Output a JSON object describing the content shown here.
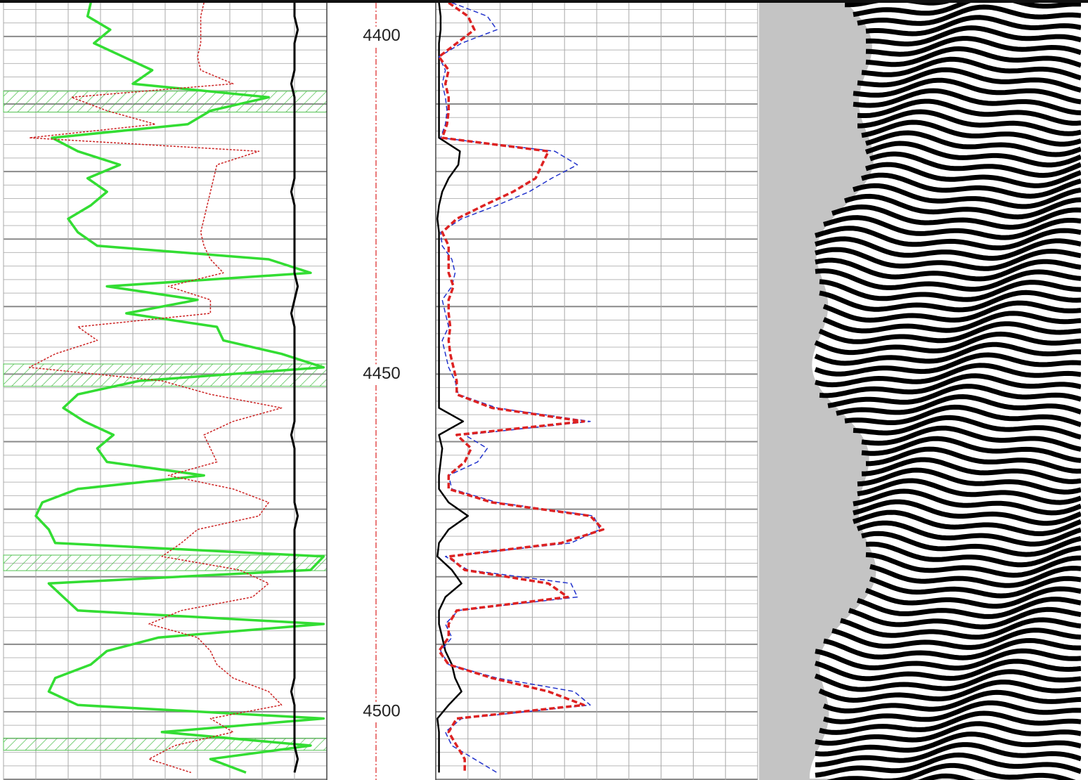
{
  "chart_data": {
    "type": "well_log",
    "ylim": [
      4394.6,
      4510.1
    ],
    "yticks": [
      4400,
      4450,
      4500
    ],
    "ygrid": [
      4396,
      4398,
      4400,
      4402,
      4404,
      4406,
      4408,
      4410,
      4412,
      4414,
      4416,
      4418,
      4420,
      4422,
      4424,
      4426,
      4428,
      4430,
      4432,
      4434,
      4436,
      4438,
      4440,
      4442,
      4444,
      4446,
      4448,
      4450,
      4452,
      4454,
      4456,
      4458,
      4460,
      4462,
      4464,
      4466,
      4468,
      4470,
      4472,
      4474,
      4476,
      4478,
      4480,
      4482,
      4484,
      4486,
      4488,
      4490,
      4492,
      4494,
      4496,
      4498,
      4500,
      4502,
      4504,
      4506,
      4508,
      4510
    ],
    "xlim": [
      0,
      10
    ],
    "xticks": [
      0,
      1,
      2,
      3,
      4,
      5,
      6,
      7,
      8,
      9,
      10
    ],
    "grid": true,
    "depth": [
      4395,
      4397,
      4399,
      4401,
      4403,
      4405,
      4407,
      4409,
      4411,
      4413,
      4415,
      4417,
      4419,
      4421,
      4423,
      4425,
      4427,
      4429,
      4431,
      4433,
      4435,
      4437,
      4439,
      4441,
      4443,
      4445,
      4447,
      4449,
      4451,
      4453,
      4455,
      4457,
      4459,
      4461,
      4463,
      4465,
      4467,
      4469,
      4471,
      4473,
      4475,
      4477,
      4479,
      4481,
      4483,
      4485,
      4487,
      4489,
      4491,
      4493,
      4495,
      4497,
      4499,
      4501,
      4503,
      4505,
      4507,
      4509
    ],
    "shaded_intervals": [
      [
        4408.1,
        4411.2
      ],
      [
        4448.5,
        4451.8
      ],
      [
        4476.8,
        4479.1
      ],
      [
        4503.9,
        4505.7
      ]
    ],
    "shade_color": "#52c152",
    "tracks": [
      {
        "series": [
          {
            "color": "#33dd33",
            "width": 3.5,
            "dash": "none",
            "values": [
              2.7,
              2.6,
              3.3,
              2.8,
              3.7,
              4.6,
              4.0,
              8.2,
              6.4,
              5.7,
              1.5,
              2.3,
              3.6,
              2.6,
              3.2,
              2.7,
              2.0,
              2.3,
              2.9,
              8.2,
              9.5,
              3.2,
              6.0,
              3.8,
              6.6,
              6.8,
              8.6,
              9.9,
              4.2,
              2.3,
              1.85,
              2.5,
              3.4,
              2.9,
              3.2,
              6.2,
              2.3,
              1.2,
              1.0,
              1.4,
              1.6,
              9.9,
              9.5,
              1.4,
              1.85,
              2.3,
              9.9,
              4.8,
              3.2,
              2.7,
              1.6,
              1.4,
              2.3,
              9.9,
              4.9,
              9.5,
              6.4,
              7.5
            ]
          },
          {
            "color": "#cc2222",
            "width": 1.5,
            "dash": "3 2",
            "values": [
              6.2,
              6.1,
              6.1,
              6.1,
              6.0,
              6.1,
              7.1,
              2.1,
              3.2,
              4.7,
              0.8,
              7.9,
              6.6,
              6.5,
              6.4,
              6.3,
              6.2,
              6.1,
              6.2,
              6.4,
              6.8,
              5.1,
              6.4,
              6.4,
              2.3,
              2.9,
              1.6,
              0.8,
              4.9,
              6.4,
              8.6,
              7.1,
              6.2,
              6.4,
              6.6,
              5.1,
              7.1,
              8.2,
              7.9,
              6.0,
              5.5,
              4.9,
              7.3,
              8.2,
              7.7,
              5.5,
              4.5,
              6.0,
              6.4,
              6.6,
              7.1,
              8.2,
              8.6,
              6.4,
              7.1,
              5.3,
              4.5,
              5.8
            ]
          },
          {
            "color": "#000000",
            "width": 3,
            "dash": "none",
            "values": [
              9.0,
              9.0,
              9.1,
              9.0,
              9.0,
              9.0,
              8.9,
              9.0,
              9.0,
              9.0,
              9.0,
              9.0,
              9.0,
              9.0,
              8.9,
              9.0,
              9.0,
              9.0,
              9.0,
              9.0,
              9.0,
              9.1,
              9.0,
              8.9,
              9.0,
              9.0,
              9.0,
              9.0,
              9.0,
              9.0,
              9.0,
              9.0,
              8.9,
              9.0,
              9.0,
              9.0,
              9.0,
              9.0,
              9.1,
              9.0,
              9.0,
              9.0,
              9.0,
              9.0,
              9.0,
              9.0,
              9.0,
              9.0,
              9.0,
              9.0,
              9.0,
              8.9,
              9.0,
              9.0,
              9.0,
              9.0,
              9.1,
              9.0
            ]
          }
        ]
      },
      {
        "series": [
          {
            "color": "#000000",
            "width": 2.5,
            "dash": "none",
            "values": [
              0.1,
              0.15,
              0.15,
              0.1,
              0.1,
              0.1,
              0.1,
              0.1,
              0.1,
              0.1,
              0.1,
              0.75,
              0.7,
              0.4,
              0.2,
              0.1,
              0.05,
              0.1,
              0.1,
              0.1,
              0.1,
              0.1,
              0.1,
              0.1,
              0.1,
              0.1,
              0.1,
              0.1,
              0.1,
              0.1,
              0.1,
              0.85,
              0.1,
              0.2,
              0.15,
              0.1,
              0.1,
              0.4,
              1.0,
              0.4,
              0.1,
              0.05,
              0.5,
              0.8,
              0.3,
              0.1,
              0.1,
              0.2,
              0.3,
              0.5,
              0.6,
              0.8,
              0.4,
              0.05,
              0.1,
              0.1,
              0.1,
              0.1
            ]
          },
          {
            "color": "#2233cc",
            "width": 1.5,
            "dash": "7 4",
            "values": [
              0.5,
              1.6,
              1.9,
              0.8,
              0.1,
              0.3,
              0.2,
              0.3,
              0.35,
              0.3,
              0.15,
              3.7,
              4.4,
              3.6,
              2.9,
              1.9,
              0.8,
              0.15,
              0.2,
              0.5,
              0.6,
              0.5,
              0.2,
              0.3,
              0.4,
              0.2,
              0.3,
              0.4,
              0.6,
              0.7,
              1.9,
              4.8,
              0.9,
              1.6,
              1.3,
              0.4,
              0.5,
              1.9,
              4.9,
              5.1,
              4.2,
              0.3,
              1.0,
              4.2,
              4.4,
              0.7,
              0.3,
              0.5,
              0.15,
              0.4,
              1.9,
              4.3,
              4.8,
              0.8,
              0.3,
              0.5,
              1.2,
              1.9
            ]
          },
          {
            "color": "#dd2222",
            "width": 3.5,
            "dash": "8 4",
            "values": [
              0.4,
              1.0,
              1.2,
              0.65,
              0.1,
              0.4,
              0.3,
              0.4,
              0.4,
              0.35,
              0.2,
              3.5,
              3.3,
              3.1,
              2.4,
              1.5,
              0.65,
              0.2,
              0.4,
              0.4,
              0.4,
              0.55,
              0.4,
              0.4,
              0.45,
              0.4,
              0.45,
              0.55,
              0.65,
              0.65,
              1.75,
              4.6,
              0.65,
              1.1,
              0.9,
              0.4,
              0.4,
              1.75,
              4.8,
              5.2,
              3.9,
              0.4,
              0.9,
              3.5,
              4.1,
              0.65,
              0.4,
              0.4,
              0.1,
              0.4,
              1.75,
              3.5,
              4.6,
              0.65,
              0.4,
              0.65,
              0.9,
              0.9
            ]
          }
        ]
      }
    ]
  }
}
